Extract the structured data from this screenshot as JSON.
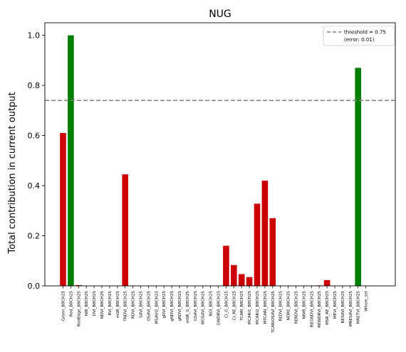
{
  "chart_data": {
    "type": "bar",
    "title": "NUG",
    "ylabel": "Total contribution in current output",
    "xlabel": "",
    "ylim": [
      0,
      1.05
    ],
    "yticks": [
      0.0,
      0.2,
      0.4,
      0.6,
      0.8,
      1.0
    ],
    "ytick_labels": [
      "0.0",
      "0.2",
      "0.4",
      "0.6",
      "0.8",
      "1.0"
    ],
    "threshold": 0.74,
    "threshold_label": "threshold = 0.75",
    "threshold_sublabel": "(error: 0.01)",
    "legend_position": "top-right",
    "colors": {
      "below": "#cc0000",
      "above": "#007f00",
      "threshold": "#808080"
    },
    "categories": [
      "Green_B8CH25",
      "Red_B8CH25",
      "RedEdge_B8CH25",
      "NIR_B8CH25",
      "DVI_B8CH25",
      "NDVI_B8CH25",
      "RVI_B8CH25",
      "mSR_B8CH25",
      "TNDVI_B8CH25",
      "RDVI_B8CH25",
      "SAVI_B8CH25",
      "OSAVI_B8CH25",
      "MSAVI2_B8CH25",
      "gDVI_B8CH25",
      "gNDVI_B8CH25",
      "gRDVI_B8CH25",
      "mSR_G_B8CH25",
      "GSAVI_B8CH25",
      "MGSAVI_B8CH25",
      "NGI_B8CH25",
      "GWDRVI_B8CH25",
      "CI_G_B8CH25",
      "CI_RE_B8CH25",
      "TCARI_B8CH25",
      "MCARI1_B8CH25",
      "MCARI2_B8CH25",
      "MTCARI_B8CH25",
      "TCARIOSAVI_B8CH25",
      "REDVI_B8CH25",
      "NDRE_B8CH25",
      "RERDVI_B8CH25",
      "NNIR_B8CH25",
      "REGNDVI_B8CH25",
      "REWDRVI_B8CH25",
      "MSR_RE_B8CH25",
      "MEVI_B8CH25",
      "RESAVI_B8CH25",
      "MRESAVI_B8CH25",
      "MRETVI_B8CH25",
      "Whole_set"
    ],
    "values": [
      0.61,
      1.0,
      0.003,
      0,
      0,
      0,
      0,
      0,
      0.445,
      0,
      0,
      0,
      0,
      0,
      0,
      0,
      0,
      0,
      0,
      0,
      0,
      0.16,
      0.083,
      0.047,
      0.035,
      0.328,
      0.42,
      0.27,
      0,
      0,
      0,
      0,
      0,
      0.002,
      0.023,
      0,
      0,
      0,
      0.87,
      0
    ]
  }
}
